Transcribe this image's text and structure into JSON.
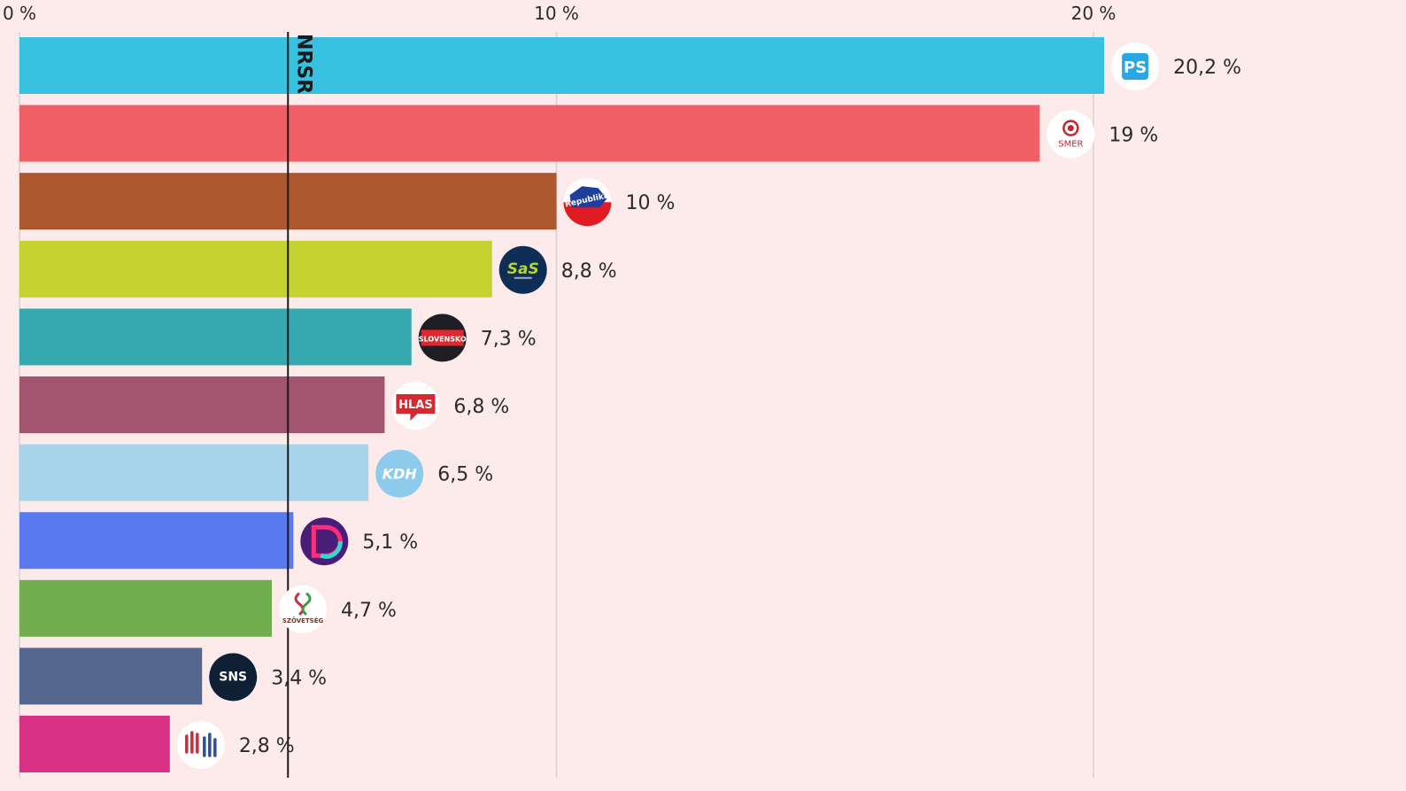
{
  "chart_data": {
    "type": "bar",
    "orientation": "horizontal",
    "categories": [
      "PS",
      "SMER",
      "Republika",
      "SaS",
      "Hnutie Slovensko",
      "HLAS",
      "KDH",
      "Demokrati",
      "Szövetség",
      "SNS",
      "Modrí"
    ],
    "values": [
      20.2,
      19,
      10,
      8.8,
      7.3,
      6.8,
      6.5,
      5.1,
      4.7,
      3.4,
      2.8
    ],
    "value_labels": [
      "20,2 %",
      "19 %",
      "10 %",
      "8,8 %",
      "7,3 %",
      "6,8 %",
      "6,5 %",
      "5,1 %",
      "4,7 %",
      "3,4 %",
      "2,8 %"
    ],
    "colors": [
      "#37c0df",
      "#f05f66",
      "#ac572d",
      "#c5d230",
      "#36a8b0",
      "#a3546f",
      "#a8d4eb",
      "#5979ef",
      "#72ae50",
      "#53678f",
      "#d93185"
    ],
    "xlim": [
      0,
      20.2
    ],
    "xticks": [
      0,
      10,
      20
    ],
    "xtick_labels": [
      "0 %",
      "10 %",
      "20 %"
    ],
    "threshold": {
      "value": 5,
      "label": "NRSR"
    },
    "grid": true,
    "title": "",
    "xlabel": "",
    "ylabel": ""
  },
  "logos": [
    {
      "text": "PS",
      "bg": "#ffffff",
      "fg": "#2aa7e0",
      "icon": "ps-logo-icon"
    },
    {
      "text": "SMER",
      "bg": "#ffffff",
      "fg": "#c0282e",
      "icon": "smer-rose-logo-icon"
    },
    {
      "text": "Republika",
      "bg": "#ffffff",
      "fg": "#1e3f9c",
      "icon": "republika-logo-icon"
    },
    {
      "text": "SaS",
      "bg": "#0f2e55",
      "fg": "#b5d334",
      "icon": "sas-logo-icon"
    },
    {
      "text": "SLOVENSKO",
      "bg": "#1e1e24",
      "fg": "#ffffff",
      "icon": "hnutie-slovensko-logo-icon"
    },
    {
      "text": "HLAS",
      "bg": "#ffffff",
      "fg": "#d6282f",
      "icon": "hlas-logo-icon"
    },
    {
      "text": "KDH",
      "bg": "#8ccbeb",
      "fg": "#ffffff",
      "icon": "kdh-logo-icon"
    },
    {
      "text": "",
      "bg": "#4a1d77",
      "fg": "#2fd8d0",
      "icon": "demokrati-logo-icon"
    },
    {
      "text": "SZÖVETSÉG",
      "bg": "#ffffff",
      "fg": "#6b3a2a",
      "icon": "szovetseg-logo-icon"
    },
    {
      "text": "SNS",
      "bg": "#0f2035",
      "fg": "#ffffff",
      "icon": "sns-logo-icon"
    },
    {
      "text": "",
      "bg": "#ffffff",
      "fg": "#d02a3c",
      "icon": "hands-logo-icon"
    }
  ]
}
